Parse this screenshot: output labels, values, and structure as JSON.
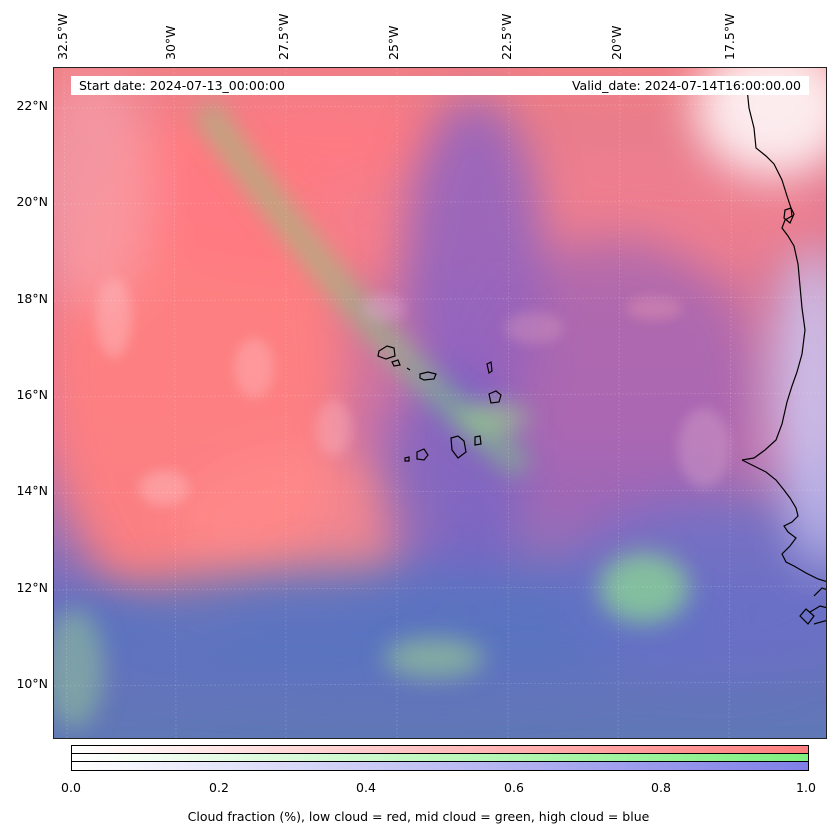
{
  "map": {
    "start_date_text": "Start date: 2024-07-13_00:00:00",
    "valid_date_text": "Valid_date: 2024-07-14T16:00:00.00",
    "lon_labels": [
      "32.5°W",
      "30°W",
      "27.5°W",
      "25°W",
      "22.5°W",
      "20°W",
      "17.5°W"
    ],
    "lat_labels": [
      "22°N",
      "20°N",
      "18°N",
      "16°N",
      "14°N",
      "12°N",
      "10°N"
    ],
    "colors": {
      "low_cloud": "#ff6b6b",
      "mid_cloud": "#7fe07f",
      "high_cloud": "#6b6bdc",
      "coastline": "#000000"
    }
  },
  "colorbar": {
    "tick_labels": [
      "0.0",
      "0.2",
      "0.4",
      "0.6",
      "0.8",
      "1.0"
    ],
    "caption": "Cloud fraction (%), low cloud = red, mid cloud = green, high cloud = blue"
  }
}
